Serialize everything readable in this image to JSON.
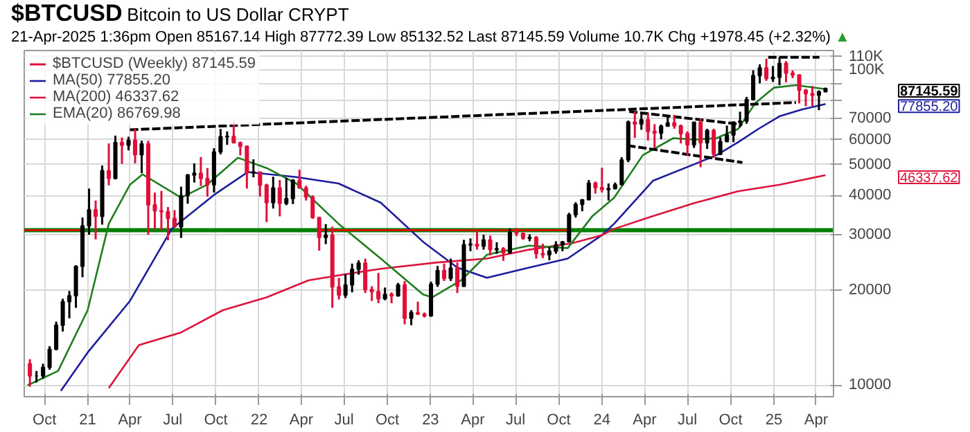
{
  "chart_data": {
    "type": "candlestick",
    "title": "$BTCUSD",
    "subtitle": "Bitcoin to US Dollar CRYPT",
    "annotations": [
      "21-Apr-2025 1:36pm Open 85167.14 High 87772.39 Low 85132.52 Last 87145.59 Volume 10.7K Chg +1978.45 (+2.32%)",
      "▲",
      "87145.59",
      "77855.20",
      "46337.62"
    ],
    "xlim": [
      "2020-08-19",
      "2025-05-08"
    ],
    "ylim": [
      9200,
      115000
    ],
    "xticks": [
      {
        "value": "2020-10-01",
        "label": "Oct"
      },
      {
        "value": "2021-01-01",
        "label": "21"
      },
      {
        "value": "2021-04-01",
        "label": "Apr"
      },
      {
        "value": "2021-07-01",
        "label": "Jul"
      },
      {
        "value": "2021-10-01",
        "label": "Oct"
      },
      {
        "value": "2022-01-01",
        "label": "22"
      },
      {
        "value": "2022-04-01",
        "label": "Apr"
      },
      {
        "value": "2022-07-01",
        "label": "Jul"
      },
      {
        "value": "2022-10-01",
        "label": "Oct"
      },
      {
        "value": "2023-01-01",
        "label": "23"
      },
      {
        "value": "2023-04-01",
        "label": "Apr"
      },
      {
        "value": "2023-07-01",
        "label": "Jul"
      },
      {
        "value": "2023-10-01",
        "label": "Oct"
      },
      {
        "value": "2024-01-01",
        "label": "24"
      },
      {
        "value": "2024-04-01",
        "label": "Apr"
      },
      {
        "value": "2024-07-01",
        "label": "Jul"
      },
      {
        "value": "2024-10-01",
        "label": "Oct"
      },
      {
        "value": "2025-01-01",
        "label": "25"
      },
      {
        "value": "2025-04-01",
        "label": "Apr"
      }
    ],
    "yticks": [
      10000,
      20000,
      30000,
      40000,
      50000,
      60000,
      70000,
      {
        "value": 80000,
        "label": null
      },
      {
        "value": 90000,
        "label": null
      },
      {
        "value": 100000,
        "label": "100K"
      },
      {
        "value": 110000,
        "label": "110K"
      }
    ],
    "log": "y",
    "grid": true,
    "legend": "top left",
    "ref_lines": [
      {
        "axis": "y",
        "value": 31000,
        "color": "#008000"
      }
    ],
    "series": [
      {
        "name": "$BTCUSD (Weekly) 87145.59",
        "x": [
          "2020-08-31",
          "2020-09-14",
          "2020-09-28",
          "2020-10-12",
          "2020-10-26",
          "2020-11-09",
          "2020-11-23",
          "2020-12-07",
          "2020-12-21",
          "2021-01-04",
          "2021-01-18",
          "2021-02-01",
          "2021-02-15",
          "2021-03-01",
          "2021-03-15",
          "2021-03-29",
          "2021-04-12",
          "2021-04-26",
          "2021-05-10",
          "2021-05-24",
          "2021-06-07",
          "2021-06-21",
          "2021-07-05",
          "2021-07-19",
          "2021-08-02",
          "2021-08-16",
          "2021-08-30",
          "2021-09-13",
          "2021-09-27",
          "2021-10-11",
          "2021-10-25",
          "2021-11-08",
          "2021-11-22",
          "2021-12-06",
          "2021-12-20",
          "2022-01-03",
          "2022-01-17",
          "2022-01-31",
          "2022-02-14",
          "2022-02-28",
          "2022-03-14",
          "2022-03-28",
          "2022-04-11",
          "2022-04-25",
          "2022-05-09",
          "2022-05-23",
          "2022-06-06",
          "2022-06-20",
          "2022-07-04",
          "2022-07-18",
          "2022-08-01",
          "2022-08-15",
          "2022-08-29",
          "2022-09-12",
          "2022-09-26",
          "2022-10-10",
          "2022-10-24",
          "2022-11-07",
          "2022-11-21",
          "2022-12-05",
          "2022-12-19",
          "2023-01-02",
          "2023-01-16",
          "2023-01-30",
          "2023-02-13",
          "2023-02-27",
          "2023-03-13",
          "2023-03-27",
          "2023-04-10",
          "2023-04-24",
          "2023-05-08",
          "2023-05-22",
          "2023-06-05",
          "2023-06-19",
          "2023-07-03",
          "2023-07-17",
          "2023-07-31",
          "2023-08-14",
          "2023-08-28",
          "2023-09-11",
          "2023-09-25",
          "2023-10-09",
          "2023-10-23",
          "2023-11-06",
          "2023-11-20",
          "2023-12-04",
          "2023-12-18",
          "2024-01-01",
          "2024-01-15",
          "2024-01-29",
          "2024-02-12",
          "2024-02-26",
          "2024-03-11",
          "2024-03-25",
          "2024-04-08",
          "2024-04-22",
          "2024-05-06",
          "2024-05-20",
          "2024-06-03",
          "2024-06-17",
          "2024-07-01",
          "2024-07-15",
          "2024-07-29",
          "2024-08-12",
          "2024-08-26",
          "2024-09-09",
          "2024-09-23",
          "2024-10-07",
          "2024-10-21",
          "2024-11-04",
          "2024-11-18",
          "2024-12-02",
          "2024-12-16",
          "2024-12-30",
          "2025-01-13",
          "2025-01-27",
          "2025-02-10",
          "2025-02-24",
          "2025-03-10",
          "2025-03-24",
          "2025-04-07",
          "2025-04-21"
        ],
        "ohlc": [
          [
            11700,
            12100,
            9900,
            10700
          ],
          [
            10700,
            11100,
            10200,
            10700
          ],
          [
            10700,
            11700,
            10500,
            11400
          ],
          [
            11400,
            13300,
            11200,
            13000
          ],
          [
            13000,
            15900,
            12900,
            15500
          ],
          [
            15500,
            18800,
            14800,
            18400
          ],
          [
            18400,
            19900,
            16300,
            19200
          ],
          [
            19200,
            24000,
            17600,
            23800
          ],
          [
            23800,
            34000,
            22000,
            32000
          ],
          [
            32000,
            42000,
            30000,
            36000
          ],
          [
            36000,
            38500,
            29000,
            34300
          ],
          [
            34300,
            49700,
            32300,
            47900
          ],
          [
            47900,
            58400,
            43000,
            45200
          ],
          [
            45200,
            61800,
            44900,
            58800
          ],
          [
            58800,
            61000,
            50300,
            57600
          ],
          [
            57600,
            61300,
            55500,
            59800
          ],
          [
            59800,
            64900,
            50500,
            53800
          ],
          [
            53800,
            59600,
            47000,
            58200
          ],
          [
            58200,
            59600,
            30000,
            37300
          ],
          [
            37300,
            40800,
            31200,
            35700
          ],
          [
            35700,
            41300,
            31000,
            35500
          ],
          [
            35500,
            36700,
            28800,
            33800
          ],
          [
            33800,
            35900,
            31700,
            31800
          ],
          [
            31800,
            42600,
            29300,
            39900
          ],
          [
            39900,
            46700,
            37600,
            46400
          ],
          [
            46400,
            50500,
            43900,
            47000
          ],
          [
            47000,
            52900,
            42800,
            45200
          ],
          [
            45200,
            48800,
            39600,
            43200
          ],
          [
            43200,
            56400,
            40800,
            54900
          ],
          [
            54900,
            64900,
            53900,
            61300
          ],
          [
            61300,
            63700,
            57800,
            61500
          ],
          [
            61500,
            69000,
            58500,
            58700
          ],
          [
            58700,
            59200,
            53500,
            57200
          ],
          [
            57200,
            57400,
            42000,
            47100
          ],
          [
            47100,
            52000,
            45600,
            47400
          ],
          [
            47400,
            47500,
            39600,
            43100
          ],
          [
            43100,
            43500,
            32900,
            37900
          ],
          [
            37900,
            45800,
            36300,
            42200
          ],
          [
            42200,
            44700,
            34300,
            37700
          ],
          [
            37700,
            45400,
            37200,
            39000
          ],
          [
            39000,
            45000,
            37500,
            44600
          ],
          [
            44600,
            48200,
            42000,
            42200
          ],
          [
            42200,
            42900,
            38500,
            39500
          ],
          [
            39500,
            40000,
            33700,
            34000
          ],
          [
            34000,
            34200,
            26700,
            29400
          ],
          [
            29400,
            32400,
            28000,
            29900
          ],
          [
            29900,
            31800,
            17600,
            20500
          ],
          [
            20500,
            21900,
            18700,
            19300
          ],
          [
            19300,
            22500,
            18900,
            20800
          ],
          [
            20800,
            24300,
            19700,
            23300
          ],
          [
            23300,
            24900,
            22400,
            24400
          ],
          [
            24400,
            25200,
            19600,
            20100
          ],
          [
            20100,
            20600,
            18500,
            19800
          ],
          [
            19800,
            22700,
            18200,
            18800
          ],
          [
            18800,
            20400,
            18600,
            19400
          ],
          [
            19400,
            19700,
            18200,
            19200
          ],
          [
            19200,
            21100,
            19100,
            20800
          ],
          [
            20800,
            21400,
            15600,
            16300
          ],
          [
            16300,
            17300,
            15500,
            17000
          ],
          [
            17000,
            18400,
            16700,
            16800
          ],
          [
            16800,
            17000,
            16400,
            16600
          ],
          [
            16600,
            21300,
            16500,
            20900
          ],
          [
            20900,
            23900,
            20500,
            23100
          ],
          [
            23100,
            24300,
            21400,
            21800
          ],
          [
            21800,
            25200,
            21400,
            23500
          ],
          [
            23500,
            24500,
            19600,
            20600
          ],
          [
            20600,
            28900,
            20500,
            27900
          ],
          [
            27900,
            29200,
            26600,
            28000
          ],
          [
            28000,
            31000,
            26900,
            27600
          ],
          [
            27600,
            30000,
            26900,
            28900
          ],
          [
            28900,
            29800,
            25800,
            26900
          ],
          [
            26900,
            28400,
            26100,
            27100
          ],
          [
            27100,
            27400,
            24800,
            26300
          ],
          [
            26300,
            31400,
            26100,
            30500
          ],
          [
            30500,
            31500,
            29700,
            30300
          ],
          [
            30300,
            30400,
            28900,
            29200
          ],
          [
            29200,
            30100,
            28600,
            29400
          ],
          [
            29400,
            29700,
            25200,
            26100
          ],
          [
            26100,
            28100,
            25300,
            25900
          ],
          [
            25900,
            27400,
            24900,
            26600
          ],
          [
            26600,
            28600,
            26100,
            27900
          ],
          [
            27900,
            28600,
            26600,
            28500
          ],
          [
            28500,
            35200,
            28400,
            34700
          ],
          [
            34700,
            38000,
            34000,
            37400
          ],
          [
            37400,
            38800,
            35600,
            38700
          ],
          [
            38700,
            44700,
            38600,
            43700
          ],
          [
            43700,
            44200,
            40500,
            42300
          ],
          [
            42300,
            48900,
            40800,
            41700
          ],
          [
            41700,
            43600,
            38500,
            42000
          ],
          [
            42000,
            43900,
            41800,
            43200
          ],
          [
            43200,
            52800,
            43100,
            51800
          ],
          [
            51800,
            69000,
            50900,
            68300
          ],
          [
            68300,
            73800,
            60800,
            67200
          ],
          [
            67200,
            72700,
            64500,
            69400
          ],
          [
            69400,
            72800,
            59600,
            63800
          ],
          [
            63800,
            67200,
            56500,
            63000
          ],
          [
            63000,
            67000,
            60200,
            66200
          ],
          [
            66200,
            71900,
            66000,
            67800
          ],
          [
            67800,
            71900,
            65000,
            66400
          ],
          [
            66400,
            67000,
            58400,
            62700
          ],
          [
            62700,
            63800,
            53500,
            57800
          ],
          [
            57800,
            68300,
            56500,
            68200
          ],
          [
            68200,
            70000,
            49100,
            58700
          ],
          [
            58700,
            65000,
            56100,
            64200
          ],
          [
            64200,
            65000,
            52500,
            54000
          ],
          [
            54000,
            61000,
            53600,
            59200
          ],
          [
            59200,
            66500,
            59000,
            62100
          ],
          [
            62100,
            68400,
            58900,
            68300
          ],
          [
            68300,
            73600,
            65600,
            68700
          ],
          [
            68700,
            82000,
            67400,
            80400
          ],
          [
            80400,
            99600,
            80000,
            95800
          ],
          [
            95800,
            104000,
            90500,
            101400
          ],
          [
            101400,
            108300,
            92200,
            93700
          ],
          [
            93700,
            102700,
            91500,
            94500
          ],
          [
            94500,
            109600,
            89300,
            104800
          ],
          [
            104800,
            106500,
            91200,
            97500
          ],
          [
            97500,
            99500,
            94000,
            96200
          ],
          [
            96200,
            96500,
            78200,
            86100
          ],
          [
            86100,
            86800,
            76600,
            84000
          ],
          [
            84000,
            88800,
            76600,
            83000
          ],
          [
            83000,
            86000,
            74400,
            85200
          ],
          [
            85167.14,
            87772.39,
            85132.52,
            87145.59
          ]
        ],
        "colors": [
          "#e0103a",
          "#000000",
          "#000000",
          "#000000",
          "#000000",
          "#000000",
          "#000000",
          "#000000",
          "#000000",
          "#000000",
          "#e0103a",
          "#000000",
          "#e0103a",
          "#000000",
          "#e0103a",
          "#000000",
          "#e0103a",
          "#000000",
          "#e0103a",
          "#e0103a",
          "#e0103a",
          "#e0103a",
          "#e0103a",
          "#000000",
          "#000000",
          "#000000",
          "#e0103a",
          "#e0103a",
          "#000000",
          "#000000",
          "#000000",
          "#e0103a",
          "#e0103a",
          "#e0103a",
          "#000000",
          "#e0103a",
          "#e0103a",
          "#000000",
          "#e0103a",
          "#000000",
          "#000000",
          "#e0103a",
          "#e0103a",
          "#e0103a",
          "#e0103a",
          "#000000",
          "#e0103a",
          "#e0103a",
          "#000000",
          "#000000",
          "#000000",
          "#e0103a",
          "#e0103a",
          "#e0103a",
          "#000000",
          "#e0103a",
          "#000000",
          "#e0103a",
          "#000000",
          "#e0103a",
          "#e0103a",
          "#000000",
          "#000000",
          "#e0103a",
          "#000000",
          "#e0103a",
          "#000000",
          "#000000",
          "#e0103a",
          "#000000",
          "#e0103a",
          "#000000",
          "#e0103a",
          "#000000",
          "#e0103a",
          "#e0103a",
          "#000000",
          "#e0103a",
          "#e0103a",
          "#000000",
          "#000000",
          "#000000",
          "#000000",
          "#000000",
          "#000000",
          "#000000",
          "#e0103a",
          "#e0103a",
          "#000000",
          "#000000",
          "#000000",
          "#000000",
          "#e0103a",
          "#000000",
          "#e0103a",
          "#e0103a",
          "#000000",
          "#000000",
          "#e0103a",
          "#e0103a",
          "#e0103a",
          "#000000",
          "#e0103a",
          "#000000",
          "#e0103a",
          "#000000",
          "#000000",
          "#000000",
          "#000000",
          "#000000",
          "#000000",
          "#000000",
          "#e0103a",
          "#000000",
          "#000000",
          "#e0103a",
          "#e0103a",
          "#e0103a",
          "#e0103a",
          "#e0103a",
          "#000000",
          "#000000"
        ]
      },
      {
        "type": "line",
        "name": "MA(50) 77855.20",
        "color": "#1c1c9c",
        "x": [
          "2020-11-05",
          "2021-01-01",
          "2021-04-01",
          "2021-06-29",
          "2021-09-30",
          "2021-12-08",
          "2022-03-21",
          "2022-06-19",
          "2022-09-17",
          "2022-12-16",
          "2023-02-27",
          "2023-05-01",
          "2023-07-30",
          "2023-10-20",
          "2024-01-01",
          "2024-01-27",
          "2024-04-19",
          "2024-07-16",
          "2024-09-01",
          "2024-10-17",
          "2024-11-29",
          "2025-01-14",
          "2025-03-01",
          "2025-04-21"
        ],
        "values": [
          9600,
          12700,
          18500,
          31300,
          40400,
          47400,
          45700,
          43600,
          37900,
          28500,
          23600,
          21900,
          23600,
          25200,
          29900,
          32500,
          44500,
          50200,
          53600,
          58900,
          64900,
          71300,
          74800,
          77855.2
        ]
      },
      {
        "type": "line",
        "name": "MA(200) 46337.62",
        "color": "#dc143c",
        "x": [
          "2021-02-15",
          "2021-04-20",
          "2021-07-19",
          "2021-10-16",
          "2022-01-17",
          "2022-04-16",
          "2022-06-19",
          "2022-09-17",
          "2023-01-15",
          "2023-05-01",
          "2023-07-30",
          "2023-10-30",
          "2024-01-01",
          "2024-01-27",
          "2024-04-19",
          "2024-07-16",
          "2024-10-17",
          "2025-01-14",
          "2025-04-21"
        ],
        "values": [
          9800,
          13400,
          14700,
          17300,
          19000,
          21500,
          22300,
          23400,
          24500,
          25200,
          26900,
          28200,
          29900,
          31300,
          34400,
          37800,
          41200,
          43200,
          46337.62
        ]
      },
      {
        "type": "line",
        "name": "EMA(20) 86769.98",
        "color": "#1e7d1e",
        "x": [
          "2020-08-26",
          "2020-10-30",
          "2021-01-01",
          "2021-02-15",
          "2021-04-01",
          "2021-04-28",
          "2021-07-19",
          "2021-09-12",
          "2021-11-17",
          "2022-01-17",
          "2022-03-21",
          "2022-06-19",
          "2022-09-17",
          "2022-12-16",
          "2023-01-05",
          "2023-03-07",
          "2023-05-01",
          "2023-07-30",
          "2023-10-20",
          "2023-12-12",
          "2024-01-27",
          "2024-03-28",
          "2024-06-01",
          "2024-07-16",
          "2024-09-01",
          "2024-10-17",
          "2024-11-22",
          "2025-01-01",
          "2025-02-17",
          "2025-04-21"
        ],
        "values": [
          10000,
          11100,
          17300,
          32500,
          43200,
          46600,
          39300,
          43200,
          52600,
          48800,
          43600,
          32500,
          25200,
          19400,
          19000,
          21500,
          25900,
          27700,
          27200,
          34400,
          39300,
          53600,
          60700,
          60000,
          60700,
          64900,
          78200,
          87700,
          89300,
          86769.98
        ]
      },
      {
        "type": "line",
        "color": "#ff0000",
        "x": [
          "2020-08-19",
          "2020-12-21",
          "2021-06-01",
          "2022-05-08",
          "2023-10-20"
        ],
        "values": [
          31000,
          31000,
          null,
          31000,
          31000
        ]
      },
      {
        "type": "line",
        "color": "#000000",
        "line_style": "dashed",
        "x": [
          "2021-04-01",
          "2025-02-17"
        ],
        "values": [
          64500,
          78700
        ]
      },
      {
        "type": "line",
        "color": "#000000",
        "line_style": "dashed",
        "x": [
          "2024-02-28",
          "2024-10-26"
        ],
        "values": [
          73700,
          67000
        ]
      },
      {
        "type": "line",
        "color": "#000000",
        "line_style": "dashed",
        "x": [
          "2024-02-24",
          "2024-10-26"
        ],
        "values": [
          57500,
          50800
        ]
      },
      {
        "type": "line",
        "color": "#000000",
        "line_style": "dashed",
        "x": [
          "2024-12-20",
          "2025-04-08"
        ],
        "values": [
          109500,
          109500
        ]
      }
    ]
  }
}
